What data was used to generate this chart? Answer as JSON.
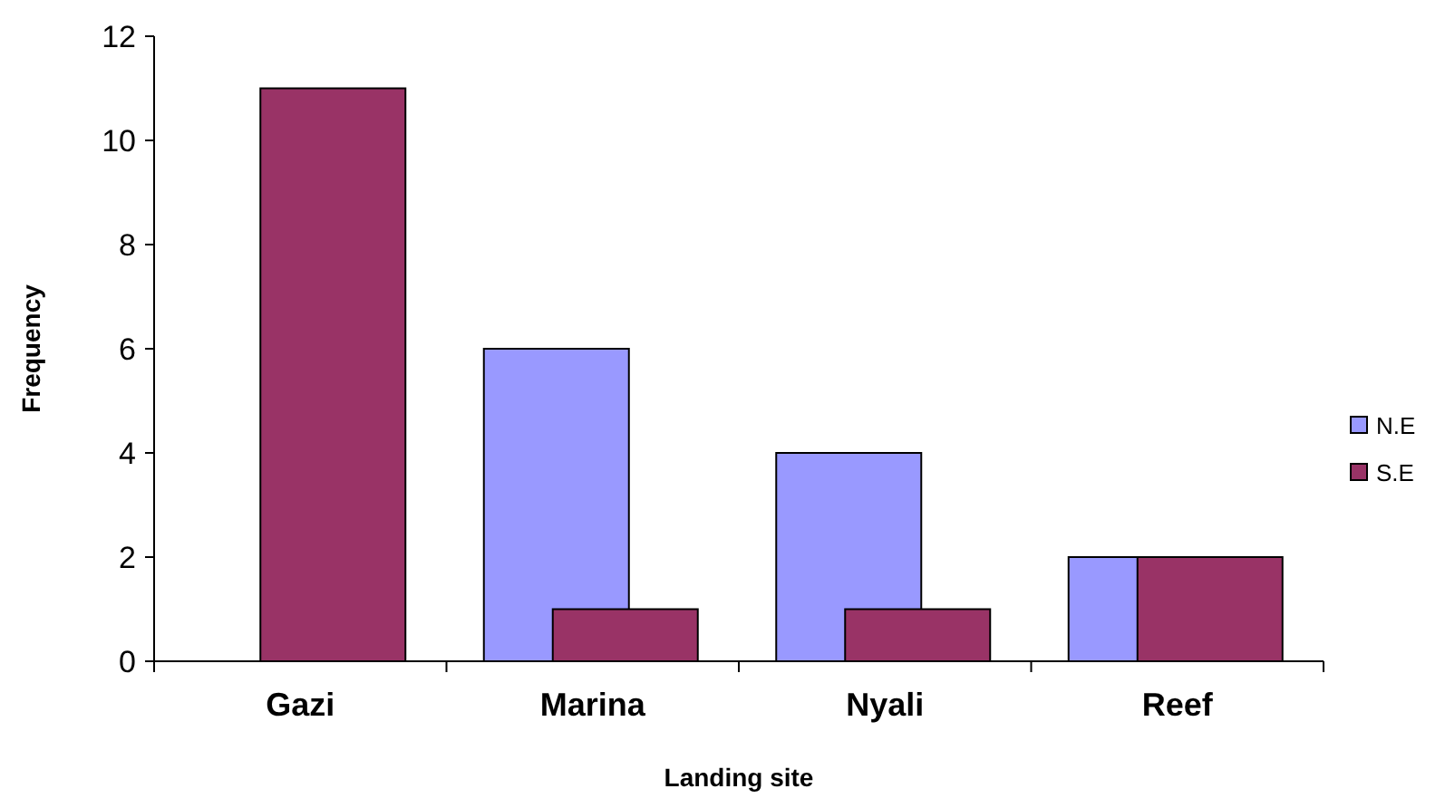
{
  "chart_data": {
    "type": "bar",
    "xlabel": "Landing site",
    "ylabel": "Frequency",
    "categories": [
      "Gazi",
      "Marina",
      "Nyali",
      "Reef"
    ],
    "series": [
      {
        "name": "N.E",
        "color": "#9999ff",
        "values": [
          0,
          6,
          4,
          2
        ]
      },
      {
        "name": "S.E",
        "color": "#993366",
        "values": [
          11,
          1,
          1,
          2
        ]
      }
    ],
    "ylim": [
      0,
      12
    ],
    "yticks": [
      0,
      2,
      4,
      6,
      8,
      10,
      12
    ],
    "grid": false,
    "legend": "right"
  }
}
